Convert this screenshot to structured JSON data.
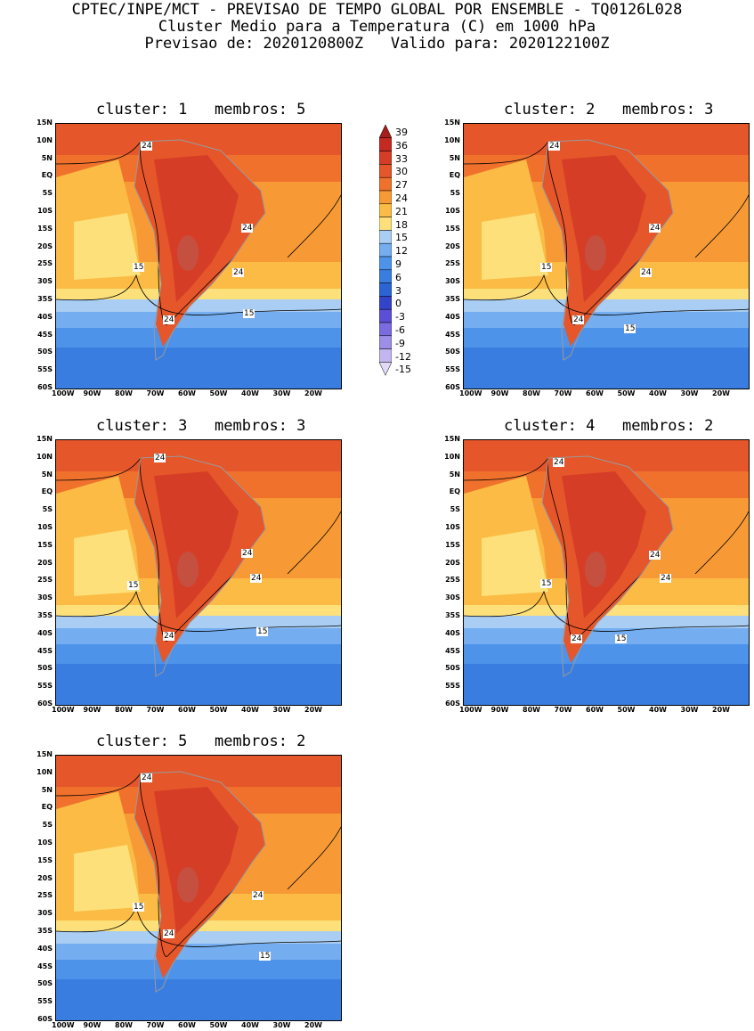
{
  "header": {
    "line1": "CPTEC/INPE/MCT - PREVISAO DE TEMPO GLOBAL POR ENSEMBLE - TQ0126L028",
    "line2": "Cluster Medio para a Temperatura (C) em 1000 hPa",
    "line3": "Previsao de: 2020120800Z   Valido para: 2020122100Z"
  },
  "lat_labels": [
    "15N",
    "10N",
    "5N",
    "EQ",
    "5S",
    "10S",
    "15S",
    "20S",
    "25S",
    "30S",
    "35S",
    "40S",
    "45S",
    "50S",
    "55S",
    "60S"
  ],
  "lon_labels": [
    "100W",
    "90W",
    "80W",
    "70W",
    "60W",
    "50W",
    "40W",
    "30W",
    "20W"
  ],
  "colorbar": {
    "labels": [
      "39",
      "36",
      "33",
      "30",
      "27",
      "24",
      "21",
      "18",
      "15",
      "12",
      "9",
      "6",
      "3",
      "0",
      "-3",
      "-6",
      "-9",
      "-12",
      "-15"
    ],
    "colors": [
      "#a51d1d",
      "#c52a22",
      "#d63d26",
      "#e5562a",
      "#f0712c",
      "#f79a35",
      "#fbbb44",
      "#fde07a",
      "#a9cdf3",
      "#74aef0",
      "#4e93ea",
      "#3a7de0",
      "#2c64d6",
      "#3344c8",
      "#5b4fd6",
      "#7a6be0",
      "#9d8ee8",
      "#c3b6f0",
      "#e2dbf8"
    ]
  },
  "panels": [
    {
      "title": "cluster: 1   membros: 5",
      "labels": [
        "24",
        "24",
        "24",
        "15",
        "24",
        "15"
      ]
    },
    {
      "title": "cluster: 2   membros: 3",
      "labels": [
        "24",
        "24",
        "24",
        "15",
        "24",
        "15"
      ]
    },
    {
      "title": "cluster: 3   membros: 3",
      "labels": [
        "24",
        "24",
        "24",
        "15",
        "24",
        "15"
      ]
    },
    {
      "title": "cluster: 4   membros: 2",
      "labels": [
        "24",
        "24",
        "24",
        "15",
        "24",
        "15"
      ]
    },
    {
      "title": "cluster: 5   membros: 2",
      "labels": [
        "24",
        "24",
        "15",
        "24",
        "15"
      ]
    }
  ]
}
